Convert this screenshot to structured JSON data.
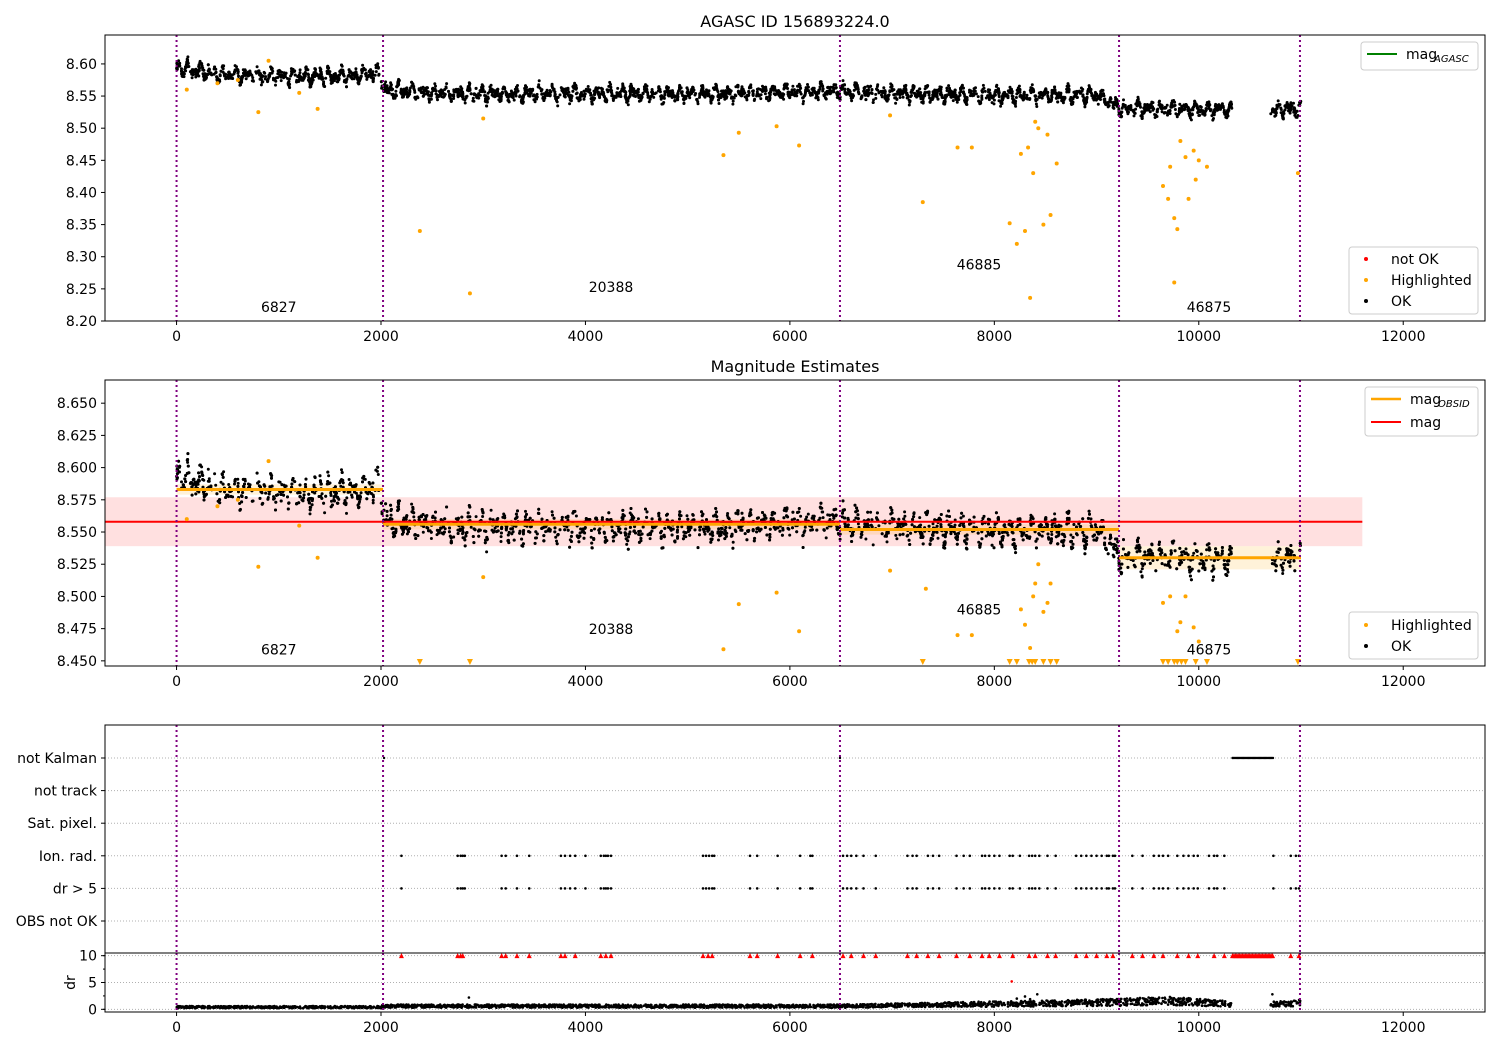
{
  "chart_data": [
    {
      "type": "scatter",
      "title": "AGASC ID 156893224.0",
      "xlabel": "",
      "ylabel": "",
      "xlim": [
        -700,
        12800
      ],
      "ylim": [
        8.2,
        8.645
      ],
      "xticks": [
        0,
        2000,
        4000,
        6000,
        8000,
        10000,
        12000
      ],
      "yticks": [
        "8.20",
        "8.25",
        "8.30",
        "8.35",
        "8.40",
        "8.45",
        "8.50",
        "8.55",
        "8.60"
      ],
      "grid": false,
      "obs_boundaries": [
        0,
        2020,
        6490,
        9220,
        10990
      ],
      "obsid_labels": [
        {
          "text": "6827",
          "x": 1000,
          "y": 8.214
        },
        {
          "text": "20388",
          "x": 4250,
          "y": 8.245
        },
        {
          "text": "46885",
          "x": 7850,
          "y": 8.28
        },
        {
          "text": "46875",
          "x": 10100,
          "y": 8.214
        }
      ],
      "ok_trend": {
        "x": [
          0,
          500,
          1000,
          1500,
          2000,
          2020,
          3000,
          4000,
          5000,
          6000,
          6490,
          7000,
          8000,
          9000,
          9220,
          9700,
          10300,
          10700,
          11000
        ],
        "y": [
          8.595,
          8.582,
          8.581,
          8.58,
          8.585,
          8.56,
          8.553,
          8.555,
          8.553,
          8.556,
          8.558,
          8.554,
          8.551,
          8.551,
          8.532,
          8.53,
          8.528,
          8.53,
          8.53
        ]
      },
      "ok_gap": [
        10330,
        10700
      ],
      "highlighted": [
        [
          100,
          8.56
        ],
        [
          400,
          8.57
        ],
        [
          600,
          8.575
        ],
        [
          800,
          8.525
        ],
        [
          900,
          8.605
        ],
        [
          1200,
          8.555
        ],
        [
          1380,
          8.53
        ],
        [
          2380,
          8.34
        ],
        [
          2870,
          8.243
        ],
        [
          3000,
          8.515
        ],
        [
          5350,
          8.458
        ],
        [
          5500,
          8.493
        ],
        [
          5870,
          8.503
        ],
        [
          6090,
          8.473
        ],
        [
          6980,
          8.52
        ],
        [
          7300,
          8.385
        ],
        [
          7640,
          8.47
        ],
        [
          7780,
          8.47
        ],
        [
          8150,
          8.352
        ],
        [
          8220,
          8.32
        ],
        [
          8260,
          8.46
        ],
        [
          8300,
          8.34
        ],
        [
          8330,
          8.47
        ],
        [
          8350,
          8.236
        ],
        [
          8380,
          8.43
        ],
        [
          8400,
          8.51
        ],
        [
          8430,
          8.5
        ],
        [
          8480,
          8.35
        ],
        [
          8520,
          8.49
        ],
        [
          8550,
          8.365
        ],
        [
          8610,
          8.445
        ],
        [
          9650,
          8.41
        ],
        [
          9700,
          8.39
        ],
        [
          9720,
          8.44
        ],
        [
          9760,
          8.36
        ],
        [
          9790,
          8.343
        ],
        [
          9820,
          8.48
        ],
        [
          9870,
          8.455
        ],
        [
          9900,
          8.39
        ],
        [
          9950,
          8.465
        ],
        [
          9970,
          8.42
        ],
        [
          10000,
          8.45
        ],
        [
          10080,
          8.44
        ],
        [
          10970,
          8.43
        ],
        [
          9760,
          8.26
        ]
      ],
      "not_ok": [],
      "legend_top": {
        "position": "upper right",
        "entries": [
          {
            "label": "mag",
            "subscript": "AGASC",
            "color": "#008000"
          }
        ]
      },
      "legend_bottom": {
        "position": "lower right",
        "entries": [
          {
            "label": "not OK",
            "color": "#ff0000"
          },
          {
            "label": "Highlighted",
            "color": "#ffa500"
          },
          {
            "label": "OK",
            "color": "#000000"
          }
        ]
      }
    },
    {
      "type": "scatter",
      "title": "Magnitude Estimates",
      "xlabel": "",
      "ylabel": "",
      "xlim": [
        -700,
        12800
      ],
      "ylim": [
        8.446,
        8.668
      ],
      "xticks": [
        0,
        2000,
        4000,
        6000,
        8000,
        10000,
        12000
      ],
      "yticks": [
        "8.450",
        "8.475",
        "8.500",
        "8.525",
        "8.550",
        "8.575",
        "8.600",
        "8.625",
        "8.650"
      ],
      "grid": false,
      "obs_boundaries": [
        0,
        2020,
        6490,
        9220,
        10990
      ],
      "obsid_labels": [
        {
          "text": "6827",
          "x": 1000,
          "y": 8.455
        },
        {
          "text": "20388",
          "x": 4250,
          "y": 8.471
        },
        {
          "text": "46885",
          "x": 7850,
          "y": 8.486
        },
        {
          "text": "46875",
          "x": 10100,
          "y": 8.455
        }
      ],
      "mag_line": {
        "y": 8.558,
        "band": [
          8.539,
          8.577
        ],
        "x": [
          -700,
          11600
        ],
        "color": "#ff0000"
      },
      "obsid_mags": [
        {
          "x": [
            0,
            2020
          ],
          "y": 8.583,
          "band": [
            8.579,
            8.587
          ]
        },
        {
          "x": [
            2020,
            6490
          ],
          "y": 8.556,
          "band": [
            8.552,
            8.56
          ]
        },
        {
          "x": [
            6490,
            9220
          ],
          "y": 8.552,
          "band": [
            8.548,
            8.556
          ]
        },
        {
          "x": [
            9220,
            11000
          ],
          "y": 8.53,
          "band": [
            8.521,
            8.539
          ]
        }
      ],
      "highlighted": [
        [
          100,
          8.56
        ],
        [
          400,
          8.57
        ],
        [
          600,
          8.575
        ],
        [
          800,
          8.523
        ],
        [
          900,
          8.605
        ],
        [
          1200,
          8.555
        ],
        [
          1380,
          8.53
        ],
        [
          3000,
          8.515
        ],
        [
          5350,
          8.459
        ],
        [
          5500,
          8.494
        ],
        [
          5870,
          8.503
        ],
        [
          6090,
          8.473
        ],
        [
          6980,
          8.52
        ],
        [
          7330,
          8.506
        ],
        [
          7640,
          8.47
        ],
        [
          7780,
          8.47
        ],
        [
          8260,
          8.49
        ],
        [
          8300,
          8.478
        ],
        [
          8350,
          8.46
        ],
        [
          8380,
          8.5
        ],
        [
          8400,
          8.51
        ],
        [
          8430,
          8.525
        ],
        [
          8480,
          8.488
        ],
        [
          8520,
          8.495
        ],
        [
          8550,
          8.51
        ],
        [
          9650,
          8.495
        ],
        [
          9720,
          8.5
        ],
        [
          9790,
          8.473
        ],
        [
          9820,
          8.48
        ],
        [
          9870,
          8.5
        ],
        [
          9950,
          8.476
        ],
        [
          10000,
          8.465
        ]
      ],
      "below_range": [
        2380,
        2870,
        7300,
        8150,
        8220,
        8340,
        8370,
        8400,
        8480,
        8550,
        8610,
        9650,
        9700,
        9760,
        9790,
        9830,
        9870,
        9970,
        10080,
        10970
      ],
      "legend_top": {
        "position": "upper right",
        "entries": [
          {
            "label": "mag",
            "subscript": "OBSID",
            "color": "#ffa500"
          },
          {
            "label": "mag",
            "color": "#ff0000"
          }
        ]
      },
      "legend_bottom": {
        "position": "lower right",
        "entries": [
          {
            "label": "Highlighted",
            "color": "#ffa500"
          },
          {
            "label": "OK",
            "color": "#000000"
          }
        ]
      }
    },
    {
      "type": "scatter",
      "title": "",
      "xlim": [
        -700,
        12800
      ],
      "xticks": [
        0,
        2000,
        4000,
        6000,
        8000,
        10000,
        12000
      ],
      "grid": true,
      "obs_boundaries": [
        0,
        2020,
        6490,
        9220,
        10990
      ],
      "flags": [
        "not Kalman",
        "not track",
        "Sat. pixel.",
        "Ion. rad.",
        "dr > 5",
        "OBS not OK"
      ],
      "not_kalman_ranges": [
        [
          10330,
          10730
        ]
      ],
      "not_kalman_points": [
        2030,
        6490
      ],
      "ion_rad_x": [
        2200,
        2750,
        2780,
        2800,
        2820,
        3180,
        3220,
        3330,
        3450,
        3760,
        3800,
        3850,
        3900,
        4000,
        4150,
        4180,
        4200,
        4220,
        4250,
        5150,
        5180,
        5210,
        5240,
        5260,
        5610,
        5680,
        5880,
        6100,
        6200,
        6220,
        6520,
        6560,
        6600,
        6650,
        6720,
        6840,
        7150,
        7200,
        7240,
        7350,
        7400,
        7460,
        7630,
        7700,
        7760,
        7880,
        7910,
        7950,
        8000,
        8050,
        8150,
        8180,
        8250,
        8340,
        8370,
        8400,
        8440,
        8520,
        8600,
        8800,
        8850,
        8900,
        8950,
        9000,
        9050,
        9100,
        9120,
        9160,
        9180,
        9350,
        9450,
        9560,
        9610,
        9650,
        9700,
        9790,
        9850,
        9900,
        9950,
        9990,
        10100,
        10150,
        10180,
        10250,
        10730,
        10900,
        10950,
        10980
      ],
      "dr_axis": {
        "ylabel": "dr",
        "yticks": [
          "0",
          "5",
          "10"
        ],
        "ylim": [
          -0.5,
          10.5
        ]
      },
      "dr_trend": {
        "x": [
          0,
          2000,
          2020,
          6490,
          9220,
          9700,
          10300,
          10700,
          11000
        ],
        "y": [
          0.4,
          0.4,
          0.6,
          0.6,
          1.3,
          1.6,
          1.0,
          1.0,
          1.2
        ]
      },
      "dr_outliers": [
        [
          2860,
          2.2
        ],
        [
          8170,
          5.2
        ],
        [
          8220,
          2.0
        ],
        [
          8300,
          2.4
        ],
        [
          8350,
          1.9
        ],
        [
          8420,
          2.8
        ],
        [
          10720,
          2.8
        ]
      ],
      "dr_capped_x": [
        2200,
        2750,
        2780,
        2800,
        3180,
        3220,
        3330,
        3450,
        3760,
        3800,
        3900,
        4150,
        4200,
        4250,
        5150,
        5200,
        5240,
        5610,
        5680,
        5880,
        6100,
        6220,
        6520,
        6600,
        6720,
        6840,
        7150,
        7240,
        7350,
        7460,
        7630,
        7760,
        7880,
        7950,
        8050,
        8180,
        8340,
        8400,
        8520,
        8600,
        8800,
        8900,
        9000,
        9100,
        9160,
        9350,
        9450,
        9560,
        9650,
        9790,
        9900,
        9990,
        10150,
        10250,
        10900,
        10980
      ],
      "dr_capped_ranges": [
        [
          10330,
          10730
        ]
      ]
    }
  ]
}
